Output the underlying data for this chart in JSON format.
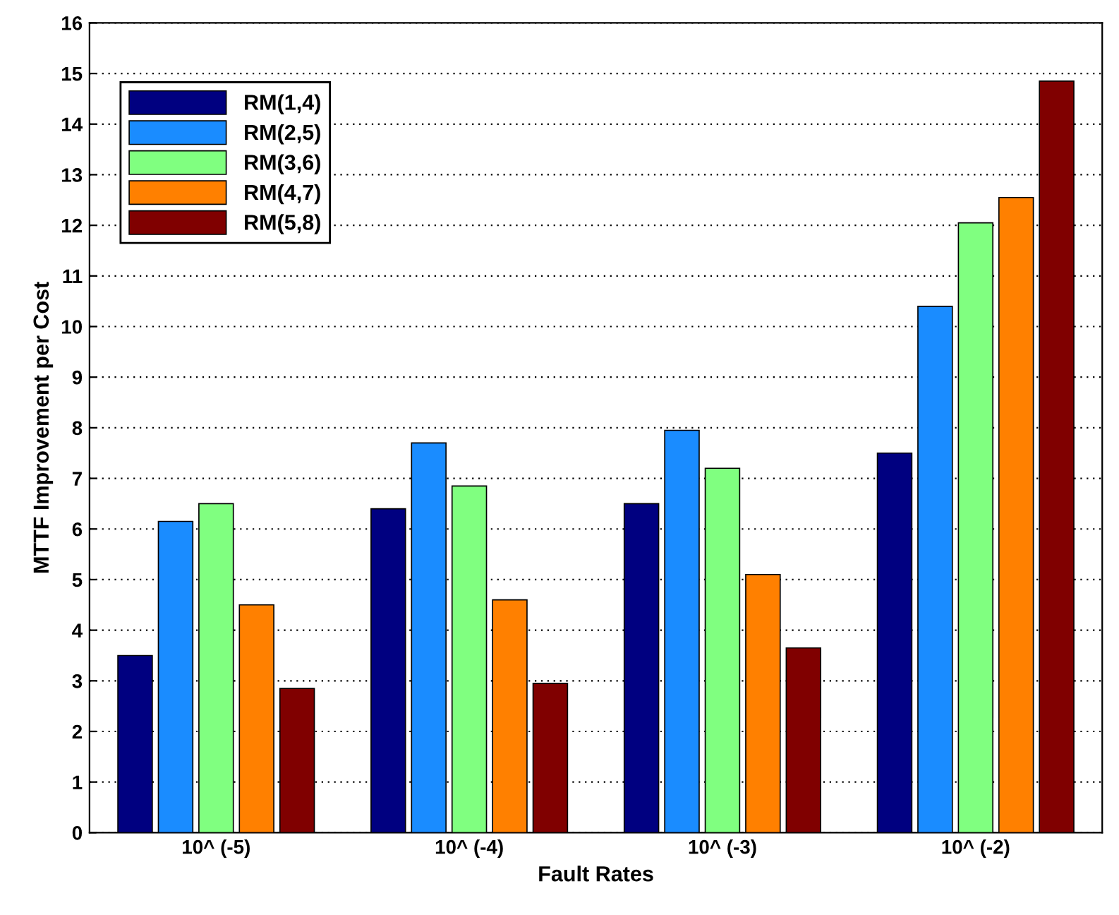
{
  "chart_data": {
    "type": "bar",
    "xlabel": "Fault Rates",
    "ylabel": "MTTF Improvement per Cost",
    "categories": [
      "10^ (-5)",
      "10^ (-4)",
      "10^ (-3)",
      "10^ (-2)"
    ],
    "series": [
      {
        "name": "RM(1,4)",
        "color": "#000080",
        "values": [
          3.5,
          6.4,
          6.5,
          7.5
        ]
      },
      {
        "name": "RM(2,5)",
        "color": "#1a8cff",
        "values": [
          6.15,
          7.7,
          7.95,
          10.4
        ]
      },
      {
        "name": "RM(3,6)",
        "color": "#80ff80",
        "values": [
          6.5,
          6.85,
          7.2,
          12.05
        ]
      },
      {
        "name": "RM(4,7)",
        "color": "#ff8000",
        "values": [
          4.5,
          4.6,
          5.1,
          12.55
        ]
      },
      {
        "name": "RM(5,8)",
        "color": "#800000",
        "values": [
          2.85,
          2.95,
          3.65,
          14.85
        ]
      }
    ],
    "ylim": [
      0,
      16
    ],
    "yticks": [
      0,
      1,
      2,
      3,
      4,
      5,
      6,
      7,
      8,
      9,
      10,
      11,
      12,
      13,
      14,
      15,
      16
    ],
    "grid": "y",
    "legend": "top left"
  }
}
